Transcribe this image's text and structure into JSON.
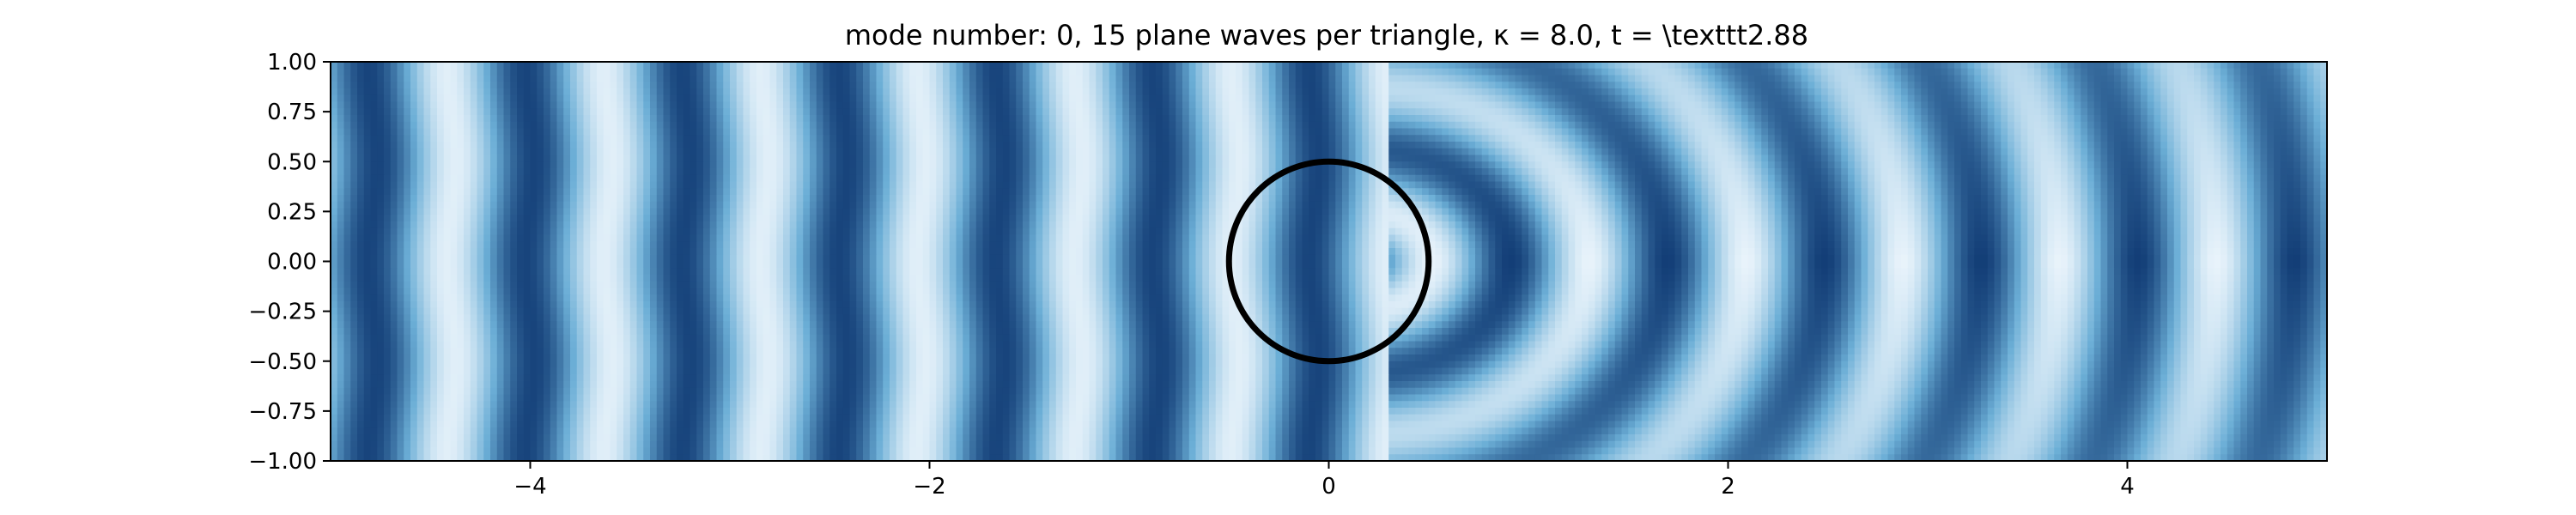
{
  "chart_data": {
    "type": "heatmap",
    "title": "mode number: 0, 15 plane waves per triangle, κ = 8.0, t =  \\texttt2.88",
    "xlabel": "",
    "ylabel": "",
    "xlim": [
      -5,
      5
    ],
    "ylim": [
      -1,
      1
    ],
    "grid": false,
    "colormap": "Blues",
    "x_ticks": [
      -4,
      -2,
      0,
      2,
      4
    ],
    "x_tick_labels": [
      "−4",
      "−2",
      "0",
      "2",
      "4"
    ],
    "y_ticks": [
      1.0,
      0.75,
      0.5,
      0.25,
      0.0,
      -0.25,
      -0.5,
      -0.75,
      -1.0
    ],
    "y_tick_labels": [
      "1.00",
      "0.75",
      "0.50",
      "0.25",
      "0.00",
      "−0.25",
      "−0.50",
      "−0.75",
      "−1.00"
    ],
    "obstacle": {
      "shape": "circle",
      "center": [
        0,
        0
      ],
      "radius": 0.5,
      "color": "#000000"
    },
    "colors": {
      "low": "#f7fbff",
      "mid": "#6baed6",
      "high": "#08306b"
    }
  }
}
